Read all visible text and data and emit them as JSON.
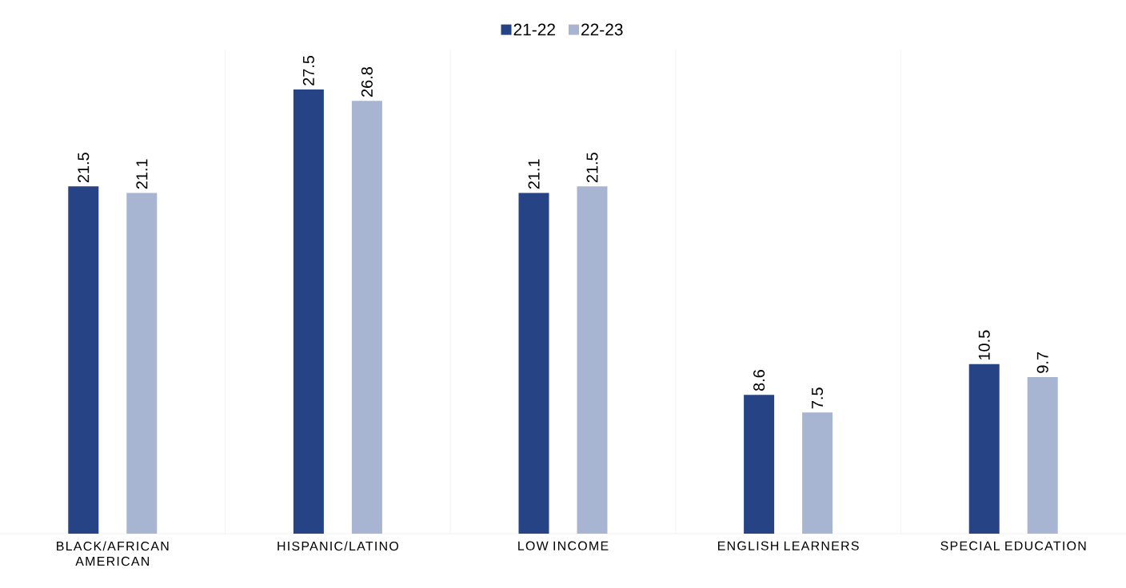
{
  "chart_data": {
    "type": "bar",
    "categories": [
      "BLACK/AFRICAN AMERICAN",
      "HISPANIC/LATINO",
      "LOW INCOME",
      "ENGLISH LEARNERS",
      "SPECIAL EDUCATION"
    ],
    "series": [
      {
        "name": "21-22",
        "color": "#264385",
        "values": [
          21.5,
          27.5,
          21.1,
          8.6,
          10.5
        ]
      },
      {
        "name": "22-23",
        "color": "#a7b5d2",
        "values": [
          21.1,
          26.8,
          21.5,
          7.5,
          9.7
        ]
      }
    ],
    "data_labels": true,
    "grid": "x",
    "legend": "top"
  }
}
